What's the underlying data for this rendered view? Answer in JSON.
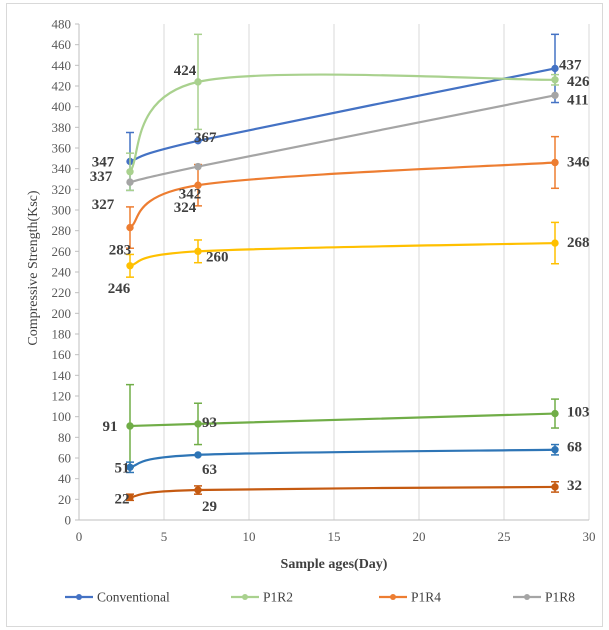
{
  "chart_data": {
    "type": "scatter",
    "xlabel": "Sample ages(Day)",
    "ylabel": "Compressive Strength(Ksc)",
    "xlim": [
      0,
      30
    ],
    "ylim": [
      0,
      480
    ],
    "x_ticks": [
      0,
      5,
      10,
      15,
      20,
      25,
      30
    ],
    "y_ticks": [
      0,
      20,
      40,
      60,
      80,
      100,
      120,
      140,
      160,
      180,
      200,
      220,
      240,
      260,
      280,
      300,
      320,
      340,
      360,
      380,
      400,
      420,
      440,
      460,
      480
    ],
    "grid": "vertical",
    "legend_position": "bottom",
    "series": [
      {
        "name": "Conventional",
        "color": "#4472c4",
        "x": [
          3,
          7,
          28
        ],
        "y": [
          347,
          367,
          437
        ],
        "err": [
          28,
          0,
          33
        ],
        "labels": [
          "347",
          "367",
          "437"
        ],
        "in_legend": true
      },
      {
        "name": "P1R2",
        "color": "#a9d18e",
        "x": [
          3,
          7,
          28
        ],
        "y": [
          337,
          424,
          426
        ],
        "err": [
          18,
          46,
          5
        ],
        "labels": [
          "337",
          "424",
          "426"
        ],
        "in_legend": true
      },
      {
        "name": "P1R4",
        "color": "#ed7d31",
        "x": [
          3,
          7,
          28
        ],
        "y": [
          283,
          324,
          346
        ],
        "err": [
          20,
          20,
          25
        ],
        "labels": [
          "283",
          "324",
          "346"
        ],
        "in_legend": true
      },
      {
        "name": "P1R8",
        "color": "#a5a5a5",
        "x": [
          3,
          7,
          28
        ],
        "y": [
          327,
          342,
          411
        ],
        "err": [
          0,
          0,
          0
        ],
        "labels": [
          "327",
          "342",
          "411"
        ],
        "in_legend": true
      },
      {
        "name": "",
        "color": "#ffc000",
        "x": [
          3,
          7,
          28
        ],
        "y": [
          246,
          260,
          268
        ],
        "err": [
          11,
          11,
          20
        ],
        "labels": [
          "246",
          "260",
          "268"
        ],
        "in_legend": false
      },
      {
        "name": "",
        "color": "#70ad47",
        "x": [
          3,
          7,
          28
        ],
        "y": [
          91,
          93,
          103
        ],
        "err": [
          40,
          20,
          14
        ],
        "labels": [
          "91",
          "93",
          "103"
        ],
        "in_legend": false
      },
      {
        "name": "",
        "color": "#2e75b6",
        "x": [
          3,
          7,
          28
        ],
        "y": [
          51,
          63,
          68
        ],
        "err": [
          5,
          0,
          5
        ],
        "labels": [
          "51",
          "63",
          "68"
        ],
        "in_legend": false
      },
      {
        "name": "",
        "color": "#c55a11",
        "x": [
          3,
          7,
          28
        ],
        "y": [
          22,
          29,
          32
        ],
        "err": [
          3,
          4,
          5
        ],
        "labels": [
          "22",
          "29",
          "32"
        ],
        "in_legend": false
      }
    ]
  }
}
